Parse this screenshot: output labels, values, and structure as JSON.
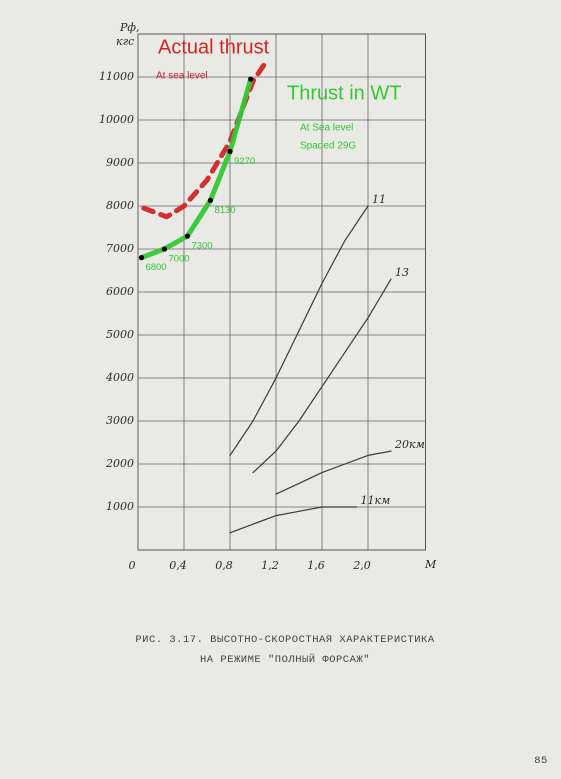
{
  "chart_data": {
    "type": "line",
    "y_label": "Рф,",
    "y_unit": "кгс",
    "x_label": "M",
    "xlim": [
      0,
      2.5
    ],
    "ylim": [
      0,
      12000
    ],
    "xticks": [
      0,
      {
        "value": 0.4,
        "label": "0,4"
      },
      {
        "value": 0.8,
        "label": "0,8"
      },
      {
        "value": 1.2,
        "label": "1,2"
      },
      {
        "value": 1.6,
        "label": "1,6"
      },
      {
        "value": 2.0,
        "label": "2,0"
      }
    ],
    "yticks": [
      1000,
      2000,
      3000,
      4000,
      5000,
      6000,
      7000,
      8000,
      9000,
      10000,
      11000
    ],
    "grid": true,
    "series": [
      {
        "name": "Actual thrust",
        "color": "#d42424",
        "dashed": true,
        "x": [
          0.05,
          0.25,
          0.4,
          0.6,
          0.8,
          1.0,
          1.1
        ],
        "values": [
          7950,
          7750,
          8000,
          8600,
          9500,
          10900,
          11300
        ]
      },
      {
        "name": "Thrust in WT",
        "color": "#34c834",
        "dashed": false,
        "markers": true,
        "x": [
          0.03,
          0.23,
          0.43,
          0.63,
          0.8,
          0.98
        ],
        "values": [
          6800,
          7000,
          7300,
          8130,
          9270,
          10950
        ],
        "value_labels": [
          "6800",
          "7000",
          "7300",
          "8130",
          "9270",
          null
        ]
      },
      {
        "name": "11",
        "color": "#3a3a3a",
        "dashed": false,
        "x": [
          0.8,
          1.0,
          1.2,
          1.4,
          1.6,
          1.8,
          2.0
        ],
        "values": [
          2200,
          3000,
          4000,
          5100,
          6200,
          7200,
          8000
        ]
      },
      {
        "name": "13",
        "color": "#3a3a3a",
        "dashed": false,
        "x": [
          1.0,
          1.2,
          1.4,
          1.6,
          1.8,
          2.0,
          2.2
        ],
        "values": [
          1800,
          2300,
          3000,
          3800,
          4600,
          5400,
          6300
        ]
      },
      {
        "name": "20км",
        "color": "#3a3a3a",
        "dashed": false,
        "x": [
          1.2,
          1.4,
          1.6,
          1.8,
          2.0,
          2.2
        ],
        "values": [
          1300,
          1550,
          1800,
          2000,
          2200,
          2300
        ]
      },
      {
        "name": "11км",
        "color": "#3a3a3a",
        "dashed": false,
        "x": [
          0.8,
          1.0,
          1.2,
          1.4,
          1.6,
          1.9
        ],
        "values": [
          400,
          600,
          800,
          900,
          1000,
          1000
        ]
      }
    ],
    "annotations": [
      {
        "text": "At sea level",
        "color": "#d42424"
      },
      {
        "text": "At Sea level",
        "color": "#34c834"
      },
      {
        "text": "Spaded 29G",
        "color": "#34c834"
      }
    ]
  },
  "caption": [
    "РИС. 3.17. ВЫСОТНО-СКОРОСТНАЯ ХАРАКТЕРИСТИКА",
    "НА РЕЖИМЕ \"ПОЛНЫЙ ФОРСАЖ\""
  ],
  "page_number": "85"
}
